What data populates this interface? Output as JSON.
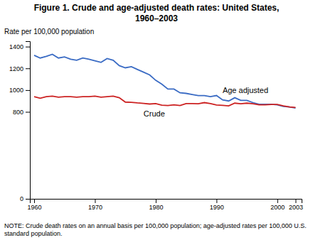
{
  "chart_data": {
    "type": "line",
    "title": "Figure 1. Crude and age-adjusted death rates: United States,\n1960–2003",
    "y_label": "Rate per 100,000 population",
    "note": "NOTE: Crude death rates on an annual basis per 100,000 population; age-adjusted rates per 100,000 U.S. standard population.",
    "x": [
      1960,
      1961,
      1962,
      1963,
      1964,
      1965,
      1966,
      1967,
      1968,
      1969,
      1970,
      1971,
      1972,
      1973,
      1974,
      1975,
      1976,
      1977,
      1978,
      1979,
      1980,
      1981,
      1982,
      1983,
      1984,
      1985,
      1986,
      1987,
      1988,
      1989,
      1990,
      1991,
      1992,
      1993,
      1994,
      1995,
      1996,
      1997,
      1998,
      1999,
      2000,
      2001,
      2002,
      2003
    ],
    "series": [
      {
        "name": "Age adjusted",
        "color": "#3a6bc4",
        "values": [
          1320,
          1295,
          1310,
          1330,
          1295,
          1305,
          1285,
          1275,
          1295,
          1285,
          1270,
          1255,
          1290,
          1275,
          1225,
          1205,
          1215,
          1190,
          1165,
          1140,
          1090,
          1055,
          1010,
          1010,
          975,
          970,
          960,
          950,
          950,
          940,
          950,
          910,
          900,
          930,
          905,
          905,
          885,
          870,
          870,
          870,
          865,
          850,
          845,
          835
        ]
      },
      {
        "name": "Crude",
        "color": "#cc2222",
        "values": [
          940,
          925,
          940,
          945,
          935,
          940,
          940,
          935,
          940,
          940,
          945,
          935,
          940,
          945,
          930,
          890,
          888,
          882,
          878,
          872,
          876,
          862,
          858,
          864,
          858,
          876,
          876,
          875,
          885,
          876,
          863,
          860,
          855,
          880,
          875,
          880,
          875,
          865,
          865,
          868,
          868,
          855,
          845,
          840
        ]
      }
    ],
    "xlim": [
      1959.3,
      2004.0
    ],
    "ylim": [
      0,
      1450
    ],
    "xticks": [
      1960,
      1970,
      1980,
      1990,
      2000,
      2003
    ],
    "yticks": [
      0,
      800,
      1000,
      1200,
      1400
    ],
    "grid": false
  }
}
